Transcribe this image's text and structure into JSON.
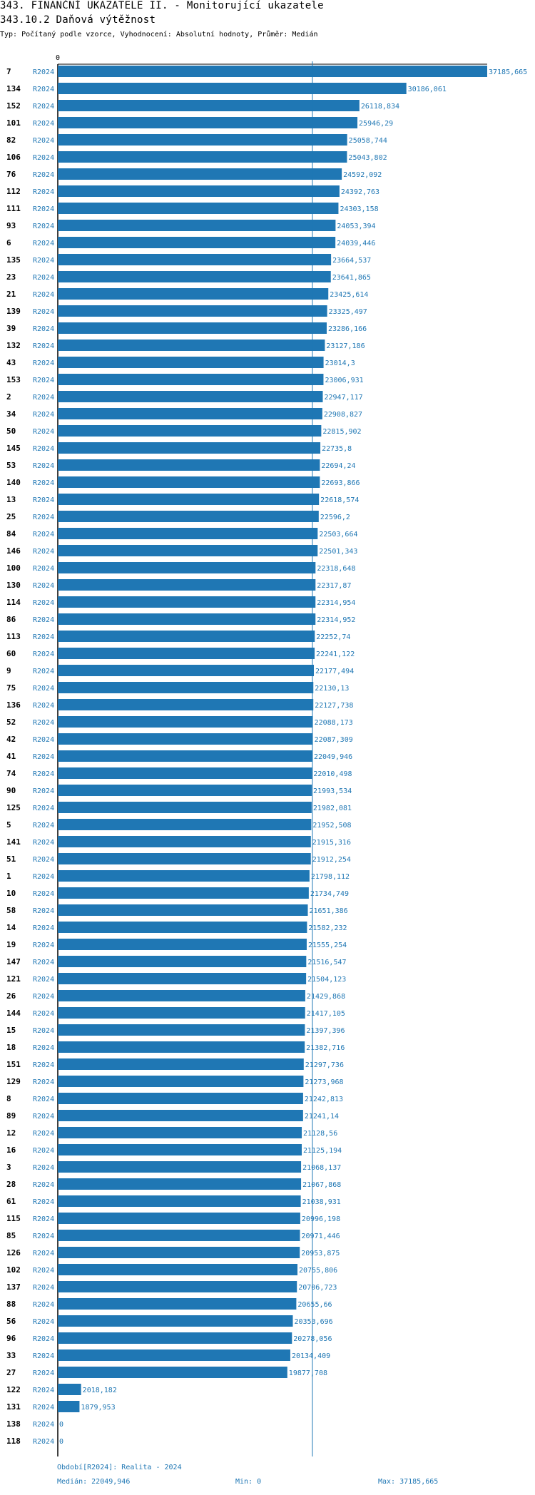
{
  "header": {
    "title": "343. FINANČNÍ UKAZATELE II. - Monitorující ukazatele",
    "subtitle": "343.10.2 Daňová výtěžnost",
    "info": "Typ: Počítaný podle vzorce, Vyhodnocení: Absolutní hodnoty, Průměr: Medián"
  },
  "chart_data": {
    "type": "bar",
    "orientation": "horizontal",
    "axis_tick": "0",
    "xlim": [
      0,
      37185.665
    ],
    "median": 22049.946,
    "bar_color": "#1f77b4",
    "rows": [
      {
        "rank": "7",
        "period": "R2024",
        "value": 37185.665,
        "label": "37185,665"
      },
      {
        "rank": "134",
        "period": "R2024",
        "value": 30186.061,
        "label": "30186,061"
      },
      {
        "rank": "152",
        "period": "R2024",
        "value": 26118.834,
        "label": "26118,834"
      },
      {
        "rank": "101",
        "period": "R2024",
        "value": 25946.29,
        "label": "25946,29"
      },
      {
        "rank": "82",
        "period": "R2024",
        "value": 25058.744,
        "label": "25058,744"
      },
      {
        "rank": "106",
        "period": "R2024",
        "value": 25043.802,
        "label": "25043,802"
      },
      {
        "rank": "76",
        "period": "R2024",
        "value": 24592.092,
        "label": "24592,092"
      },
      {
        "rank": "112",
        "period": "R2024",
        "value": 24392.763,
        "label": "24392,763"
      },
      {
        "rank": "111",
        "period": "R2024",
        "value": 24303.158,
        "label": "24303,158"
      },
      {
        "rank": "93",
        "period": "R2024",
        "value": 24053.394,
        "label": "24053,394"
      },
      {
        "rank": "6",
        "period": "R2024",
        "value": 24039.446,
        "label": "24039,446"
      },
      {
        "rank": "135",
        "period": "R2024",
        "value": 23664.537,
        "label": "23664,537"
      },
      {
        "rank": "23",
        "period": "R2024",
        "value": 23641.865,
        "label": "23641,865"
      },
      {
        "rank": "21",
        "period": "R2024",
        "value": 23425.614,
        "label": "23425,614"
      },
      {
        "rank": "139",
        "period": "R2024",
        "value": 23325.497,
        "label": "23325,497"
      },
      {
        "rank": "39",
        "period": "R2024",
        "value": 23286.166,
        "label": "23286,166"
      },
      {
        "rank": "132",
        "period": "R2024",
        "value": 23127.186,
        "label": "23127,186"
      },
      {
        "rank": "43",
        "period": "R2024",
        "value": 23014.3,
        "label": "23014,3"
      },
      {
        "rank": "153",
        "period": "R2024",
        "value": 23006.931,
        "label": "23006,931"
      },
      {
        "rank": "2",
        "period": "R2024",
        "value": 22947.117,
        "label": "22947,117"
      },
      {
        "rank": "34",
        "period": "R2024",
        "value": 22908.827,
        "label": "22908,827"
      },
      {
        "rank": "50",
        "period": "R2024",
        "value": 22815.902,
        "label": "22815,902"
      },
      {
        "rank": "145",
        "period": "R2024",
        "value": 22735.8,
        "label": "22735,8"
      },
      {
        "rank": "53",
        "period": "R2024",
        "value": 22694.24,
        "label": "22694,24"
      },
      {
        "rank": "140",
        "period": "R2024",
        "value": 22693.866,
        "label": "22693,866"
      },
      {
        "rank": "13",
        "period": "R2024",
        "value": 22618.574,
        "label": "22618,574"
      },
      {
        "rank": "25",
        "period": "R2024",
        "value": 22596.2,
        "label": "22596,2"
      },
      {
        "rank": "84",
        "period": "R2024",
        "value": 22503.664,
        "label": "22503,664"
      },
      {
        "rank": "146",
        "period": "R2024",
        "value": 22501.343,
        "label": "22501,343"
      },
      {
        "rank": "100",
        "period": "R2024",
        "value": 22318.648,
        "label": "22318,648"
      },
      {
        "rank": "130",
        "period": "R2024",
        "value": 22317.87,
        "label": "22317,87"
      },
      {
        "rank": "114",
        "period": "R2024",
        "value": 22314.954,
        "label": "22314,954"
      },
      {
        "rank": "86",
        "period": "R2024",
        "value": 22314.952,
        "label": "22314,952"
      },
      {
        "rank": "113",
        "period": "R2024",
        "value": 22252.74,
        "label": "22252,74"
      },
      {
        "rank": "60",
        "period": "R2024",
        "value": 22241.122,
        "label": "22241,122"
      },
      {
        "rank": "9",
        "period": "R2024",
        "value": 22177.494,
        "label": "22177,494"
      },
      {
        "rank": "75",
        "period": "R2024",
        "value": 22130.13,
        "label": "22130,13"
      },
      {
        "rank": "136",
        "period": "R2024",
        "value": 22127.738,
        "label": "22127,738"
      },
      {
        "rank": "52",
        "period": "R2024",
        "value": 22088.173,
        "label": "22088,173"
      },
      {
        "rank": "42",
        "period": "R2024",
        "value": 22087.309,
        "label": "22087,309"
      },
      {
        "rank": "41",
        "period": "R2024",
        "value": 22049.946,
        "label": "22049,946"
      },
      {
        "rank": "74",
        "period": "R2024",
        "value": 22010.498,
        "label": "22010,498"
      },
      {
        "rank": "90",
        "period": "R2024",
        "value": 21993.534,
        "label": "21993,534"
      },
      {
        "rank": "125",
        "period": "R2024",
        "value": 21982.081,
        "label": "21982,081"
      },
      {
        "rank": "5",
        "period": "R2024",
        "value": 21952.508,
        "label": "21952,508"
      },
      {
        "rank": "141",
        "period": "R2024",
        "value": 21915.316,
        "label": "21915,316"
      },
      {
        "rank": "51",
        "period": "R2024",
        "value": 21912.254,
        "label": "21912,254"
      },
      {
        "rank": "1",
        "period": "R2024",
        "value": 21798.112,
        "label": "21798,112"
      },
      {
        "rank": "10",
        "period": "R2024",
        "value": 21734.749,
        "label": "21734,749"
      },
      {
        "rank": "58",
        "period": "R2024",
        "value": 21651.386,
        "label": "21651,386"
      },
      {
        "rank": "14",
        "period": "R2024",
        "value": 21582.232,
        "label": "21582,232"
      },
      {
        "rank": "19",
        "period": "R2024",
        "value": 21555.254,
        "label": "21555,254"
      },
      {
        "rank": "147",
        "period": "R2024",
        "value": 21516.547,
        "label": "21516,547"
      },
      {
        "rank": "121",
        "period": "R2024",
        "value": 21504.123,
        "label": "21504,123"
      },
      {
        "rank": "26",
        "period": "R2024",
        "value": 21429.868,
        "label": "21429,868"
      },
      {
        "rank": "144",
        "period": "R2024",
        "value": 21417.105,
        "label": "21417,105"
      },
      {
        "rank": "15",
        "period": "R2024",
        "value": 21397.396,
        "label": "21397,396"
      },
      {
        "rank": "18",
        "period": "R2024",
        "value": 21382.716,
        "label": "21382,716"
      },
      {
        "rank": "151",
        "period": "R2024",
        "value": 21297.736,
        "label": "21297,736"
      },
      {
        "rank": "129",
        "period": "R2024",
        "value": 21273.968,
        "label": "21273,968"
      },
      {
        "rank": "8",
        "period": "R2024",
        "value": 21242.813,
        "label": "21242,813"
      },
      {
        "rank": "89",
        "period": "R2024",
        "value": 21241.14,
        "label": "21241,14"
      },
      {
        "rank": "12",
        "period": "R2024",
        "value": 21128.56,
        "label": "21128,56"
      },
      {
        "rank": "16",
        "period": "R2024",
        "value": 21125.194,
        "label": "21125,194"
      },
      {
        "rank": "3",
        "period": "R2024",
        "value": 21068.137,
        "label": "21068,137"
      },
      {
        "rank": "28",
        "period": "R2024",
        "value": 21067.868,
        "label": "21067,868"
      },
      {
        "rank": "61",
        "period": "R2024",
        "value": 21038.931,
        "label": "21038,931"
      },
      {
        "rank": "115",
        "period": "R2024",
        "value": 20996.198,
        "label": "20996,198"
      },
      {
        "rank": "85",
        "period": "R2024",
        "value": 20971.446,
        "label": "20971,446"
      },
      {
        "rank": "126",
        "period": "R2024",
        "value": 20953.875,
        "label": "20953,875"
      },
      {
        "rank": "102",
        "period": "R2024",
        "value": 20755.806,
        "label": "20755,806"
      },
      {
        "rank": "137",
        "period": "R2024",
        "value": 20706.723,
        "label": "20706,723"
      },
      {
        "rank": "88",
        "period": "R2024",
        "value": 20655.66,
        "label": "20655,66"
      },
      {
        "rank": "56",
        "period": "R2024",
        "value": 20353.696,
        "label": "20353,696"
      },
      {
        "rank": "96",
        "period": "R2024",
        "value": 20278.056,
        "label": "20278,056"
      },
      {
        "rank": "33",
        "period": "R2024",
        "value": 20134.409,
        "label": "20134,409"
      },
      {
        "rank": "27",
        "period": "R2024",
        "value": 19877.708,
        "label": "19877,708"
      },
      {
        "rank": "122",
        "period": "R2024",
        "value": 2018.182,
        "label": "2018,182"
      },
      {
        "rank": "131",
        "period": "R2024",
        "value": 1879.953,
        "label": "1879,953"
      },
      {
        "rank": "138",
        "period": "R2024",
        "value": 0,
        "label": "0"
      },
      {
        "rank": "118",
        "period": "R2024",
        "value": 0,
        "label": "0"
      }
    ]
  },
  "footer": {
    "period": "Období[R2024]: Realita - 2024",
    "median": "Medián: 22049,946",
    "min": "Min: 0",
    "max": "Max: 37185,665"
  }
}
